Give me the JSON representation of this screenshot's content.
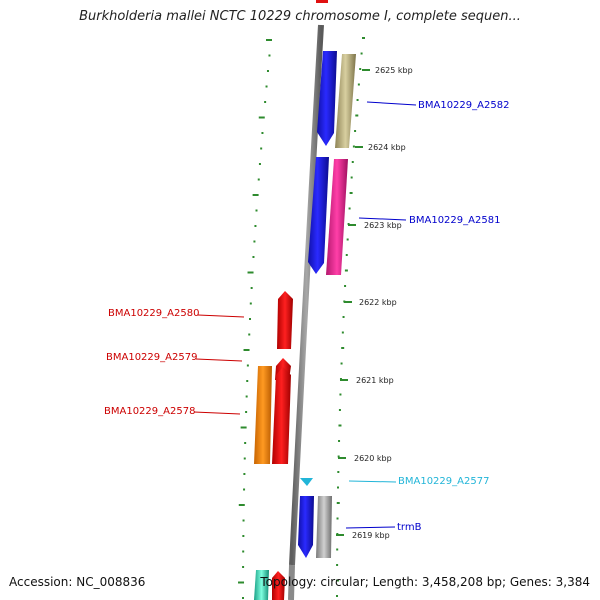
{
  "title": "Burkholderia mallei NCTC 10229 chromosome I, complete sequen...",
  "footer": {
    "accession": "Accession: NC_008836",
    "summary": "Topology: circular; Length: 3,458,208 bp; Genes: 3,384"
  },
  "colors": {
    "backbone": "#8a8a8a",
    "ruler_ticks": "#2e8b2e",
    "forward_label": "#0000cc",
    "reverse_label": "#cc0000",
    "trna_label": "#22b5d8"
  },
  "ruler": {
    "unit": "kbp",
    "ticks": [
      {
        "label": "2625 kbp"
      },
      {
        "label": "2624 kbp"
      },
      {
        "label": "2623 kbp"
      },
      {
        "label": "2622 kbp"
      },
      {
        "label": "2621 kbp"
      },
      {
        "label": "2620 kbp"
      },
      {
        "label": "2619 kbp"
      }
    ]
  },
  "gene_labels": [
    {
      "text": "BMA10229_A2582",
      "strand": "forward",
      "color": "#0000cc"
    },
    {
      "text": "BMA10229_A2581",
      "strand": "forward",
      "color": "#0000cc"
    },
    {
      "text": "BMA10229_A2580",
      "strand": "reverse",
      "color": "#cc0000"
    },
    {
      "text": "BMA10229_A2579",
      "strand": "reverse",
      "color": "#cc0000"
    },
    {
      "text": "BMA10229_A2578",
      "strand": "reverse",
      "color": "#cc0000"
    },
    {
      "text": "BMA10229_A2577",
      "strand": "forward",
      "color": "#22b5d8"
    },
    {
      "text": "trmB",
      "strand": "forward",
      "color": "#0000cc"
    }
  ]
}
